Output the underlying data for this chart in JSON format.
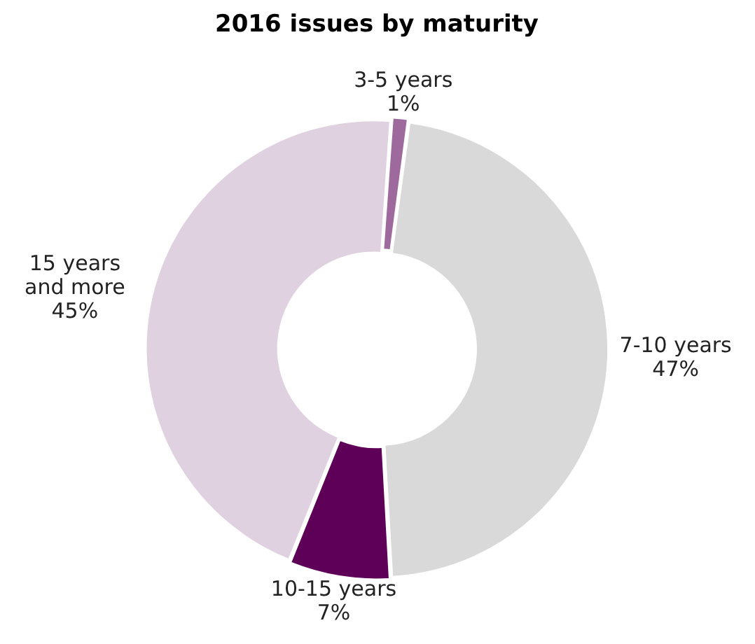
{
  "chart_data": {
    "type": "donut",
    "title": "2016 issues by maturity",
    "categories": [
      "3-5 years",
      "7-10 years",
      "10-15 years",
      "15 years and more"
    ],
    "values": [
      1,
      47,
      7,
      45
    ],
    "value_labels": [
      "1%",
      "47%",
      "7%",
      "45%"
    ],
    "colors": [
      "#9e6a9e",
      "#d9d9d9",
      "#5e0058",
      "#e0d1e0"
    ],
    "legend": false
  }
}
